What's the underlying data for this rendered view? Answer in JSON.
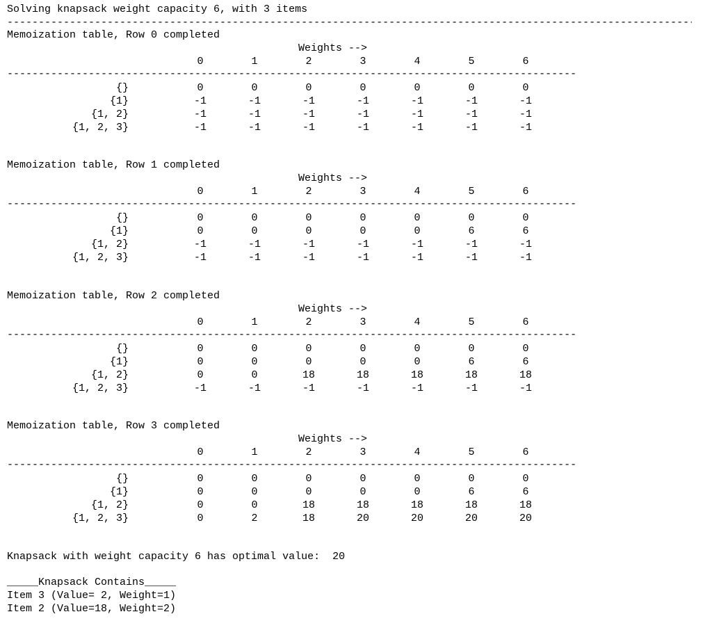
{
  "header": {
    "title": "Solving knapsack weight capacity 6, with 3 items",
    "separator_long": "-----------------------------------------------------------------------------------------------------------------------------"
  },
  "tables": [
    {
      "caption": "Memoization table, Row 0 completed",
      "axis_label": "Weights -->",
      "columns": [
        "0",
        "1",
        "2",
        "3",
        "4",
        "5",
        "6"
      ],
      "separator": "----------------------------------------------------------------------------------------------------------",
      "rows": [
        {
          "label": "{}",
          "values": [
            "0",
            "0",
            "0",
            "0",
            "0",
            "0",
            "0"
          ]
        },
        {
          "label": "{1}",
          "values": [
            "-1",
            "-1",
            "-1",
            "-1",
            "-1",
            "-1",
            "-1"
          ]
        },
        {
          "label": "{1, 2}",
          "values": [
            "-1",
            "-1",
            "-1",
            "-1",
            "-1",
            "-1",
            "-1"
          ]
        },
        {
          "label": "{1, 2, 3}",
          "values": [
            "-1",
            "-1",
            "-1",
            "-1",
            "-1",
            "-1",
            "-1"
          ]
        }
      ]
    },
    {
      "caption": "Memoization table, Row 1 completed",
      "axis_label": "Weights -->",
      "columns": [
        "0",
        "1",
        "2",
        "3",
        "4",
        "5",
        "6"
      ],
      "separator": "----------------------------------------------------------------------------------------------------------",
      "rows": [
        {
          "label": "{}",
          "values": [
            "0",
            "0",
            "0",
            "0",
            "0",
            "0",
            "0"
          ]
        },
        {
          "label": "{1}",
          "values": [
            "0",
            "0",
            "0",
            "0",
            "0",
            "6",
            "6"
          ]
        },
        {
          "label": "{1, 2}",
          "values": [
            "-1",
            "-1",
            "-1",
            "-1",
            "-1",
            "-1",
            "-1"
          ]
        },
        {
          "label": "{1, 2, 3}",
          "values": [
            "-1",
            "-1",
            "-1",
            "-1",
            "-1",
            "-1",
            "-1"
          ]
        }
      ]
    },
    {
      "caption": "Memoization table, Row 2 completed",
      "axis_label": "Weights -->",
      "columns": [
        "0",
        "1",
        "2",
        "3",
        "4",
        "5",
        "6"
      ],
      "separator": "----------------------------------------------------------------------------------------------------------",
      "rows": [
        {
          "label": "{}",
          "values": [
            "0",
            "0",
            "0",
            "0",
            "0",
            "0",
            "0"
          ]
        },
        {
          "label": "{1}",
          "values": [
            "0",
            "0",
            "0",
            "0",
            "0",
            "6",
            "6"
          ]
        },
        {
          "label": "{1, 2}",
          "values": [
            "0",
            "0",
            "18",
            "18",
            "18",
            "18",
            "18"
          ]
        },
        {
          "label": "{1, 2, 3}",
          "values": [
            "-1",
            "-1",
            "-1",
            "-1",
            "-1",
            "-1",
            "-1"
          ]
        }
      ]
    },
    {
      "caption": "Memoization table, Row 3 completed",
      "axis_label": "Weights -->",
      "columns": [
        "0",
        "1",
        "2",
        "3",
        "4",
        "5",
        "6"
      ],
      "separator": "----------------------------------------------------------------------------------------------------------",
      "rows": [
        {
          "label": "{}",
          "values": [
            "0",
            "0",
            "0",
            "0",
            "0",
            "0",
            "0"
          ]
        },
        {
          "label": "{1}",
          "values": [
            "0",
            "0",
            "0",
            "0",
            "0",
            "6",
            "6"
          ]
        },
        {
          "label": "{1, 2}",
          "values": [
            "0",
            "0",
            "18",
            "18",
            "18",
            "18",
            "18"
          ]
        },
        {
          "label": "{1, 2, 3}",
          "values": [
            "0",
            "2",
            "18",
            "20",
            "20",
            "20",
            "20"
          ]
        }
      ]
    }
  ],
  "result": {
    "optimal_line": "Knapsack with weight capacity 6 has optimal value:  20",
    "contains_heading": "_____Knapsack Contains_____",
    "items": [
      "Item 3 (Value= 2, Weight=1)",
      "Item 2 (Value=18, Weight=2)"
    ]
  }
}
